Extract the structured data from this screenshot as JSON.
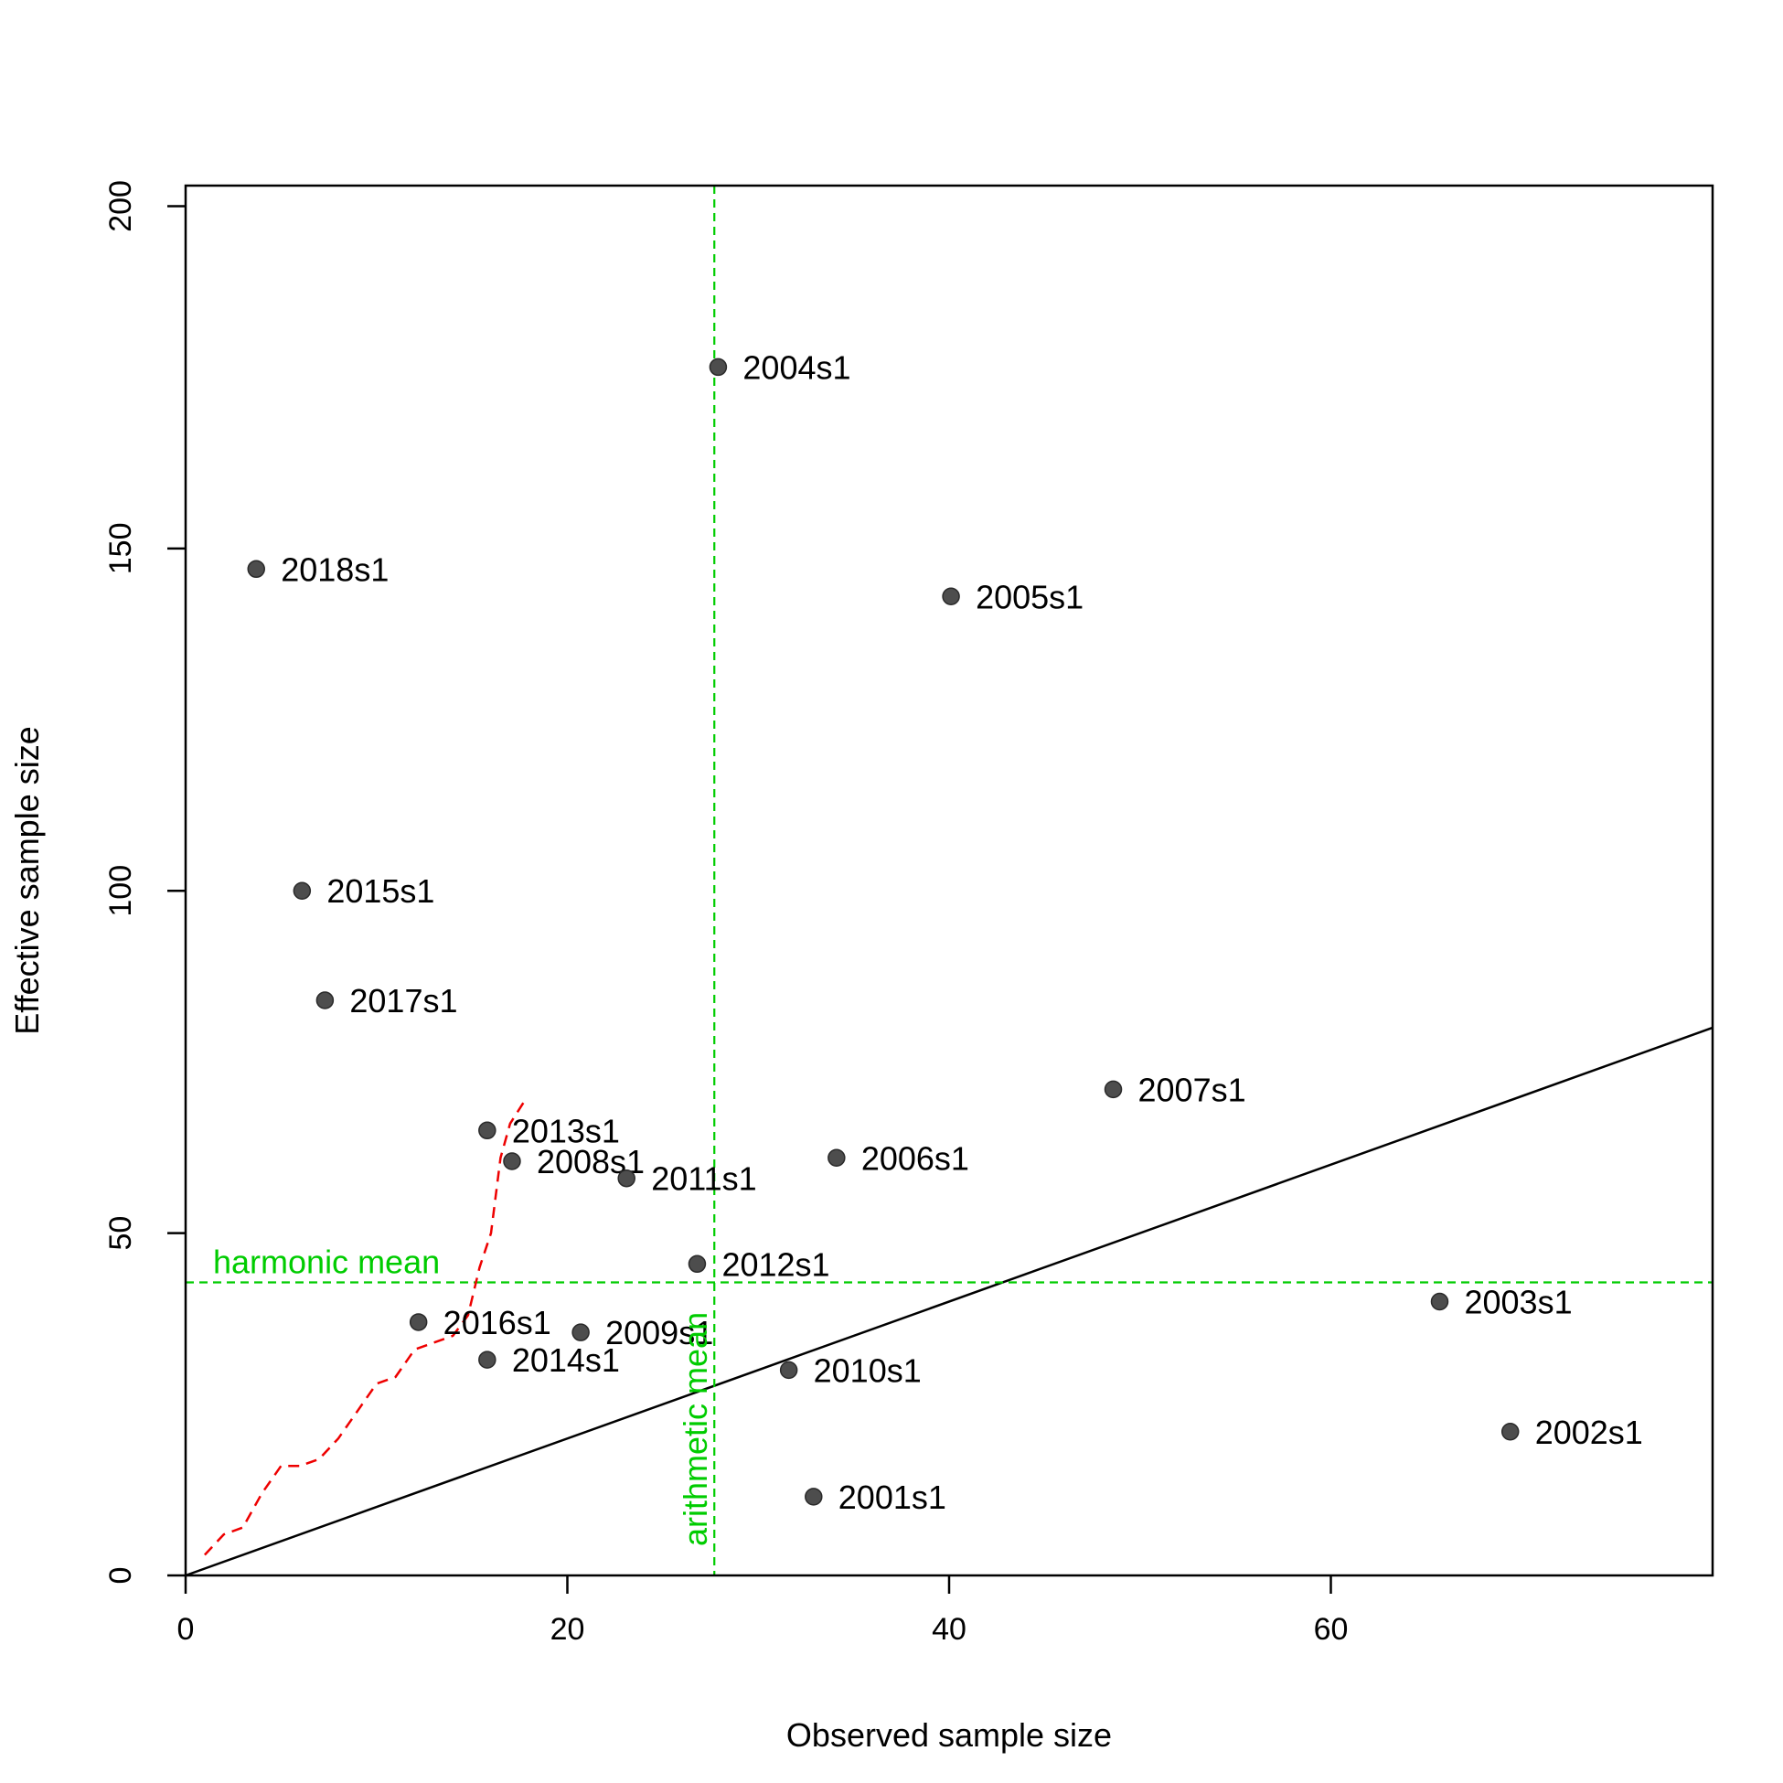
{
  "chart_data": {
    "type": "scatter",
    "xlabel": "Observed sample size",
    "ylabel": "Effective sample size",
    "xlim": [
      0,
      80
    ],
    "ylim": [
      0,
      203
    ],
    "x_ticks": [
      0,
      20,
      40,
      60
    ],
    "y_ticks": [
      0,
      50,
      100,
      150,
      200
    ],
    "grid": false,
    "points": [
      {
        "label": "2001s1",
        "x": 32.9,
        "y": 11.5
      },
      {
        "label": "2002s1",
        "x": 69.4,
        "y": 21.0
      },
      {
        "label": "2003s1",
        "x": 65.7,
        "y": 40.0
      },
      {
        "label": "2004s1",
        "x": 27.9,
        "y": 176.5
      },
      {
        "label": "2005s1",
        "x": 40.1,
        "y": 143.0
      },
      {
        "label": "2006s1",
        "x": 34.1,
        "y": 61.0
      },
      {
        "label": "2007s1",
        "x": 48.6,
        "y": 71.0
      },
      {
        "label": "2008s1",
        "x": 17.1,
        "y": 60.5
      },
      {
        "label": "2009s1",
        "x": 20.7,
        "y": 35.5
      },
      {
        "label": "2010s1",
        "x": 31.6,
        "y": 30.0
      },
      {
        "label": "2011s1",
        "x": 23.1,
        "y": 58.0
      },
      {
        "label": "2012s1",
        "x": 26.8,
        "y": 45.5
      },
      {
        "label": "2013s1",
        "x": 15.8,
        "y": 65.0
      },
      {
        "label": "2014s1",
        "x": 15.8,
        "y": 31.5
      },
      {
        "label": "2015s1",
        "x": 6.1,
        "y": 100.0
      },
      {
        "label": "2016s1",
        "x": 12.2,
        "y": 37.0
      },
      {
        "label": "2017s1",
        "x": 7.3,
        "y": 84.0
      },
      {
        "label": "2018s1",
        "x": 3.7,
        "y": 147.0
      }
    ],
    "identity_line": {
      "x": [
        0,
        80
      ],
      "y": [
        0,
        80
      ]
    },
    "harmonic_mean": {
      "label": "harmonic mean",
      "value": 42.8
    },
    "arithmetic_mean": {
      "label": "arithmetic mean",
      "value": 27.7
    },
    "running_harmonic_line": {
      "x": [
        1.0,
        2.0,
        3.0,
        4.0,
        5.0,
        6.0,
        7.0,
        8.0,
        9.0,
        10.0,
        11.0,
        12.0,
        13.0,
        14.0,
        14.8,
        15.4,
        16.0,
        16.5,
        17.0,
        17.8
      ],
      "y": [
        3.0,
        6.0,
        7.0,
        12.0,
        16.0,
        16.0,
        17.0,
        20.0,
        24.0,
        28.0,
        29.0,
        33.0,
        34.0,
        35.0,
        38.0,
        45.0,
        50.0,
        61.0,
        66.0,
        69.5
      ]
    },
    "colors": {
      "points": "#4d4d4d",
      "identity_line": "#000000",
      "means": "#00cc00",
      "running_line": "#ee0000"
    }
  }
}
